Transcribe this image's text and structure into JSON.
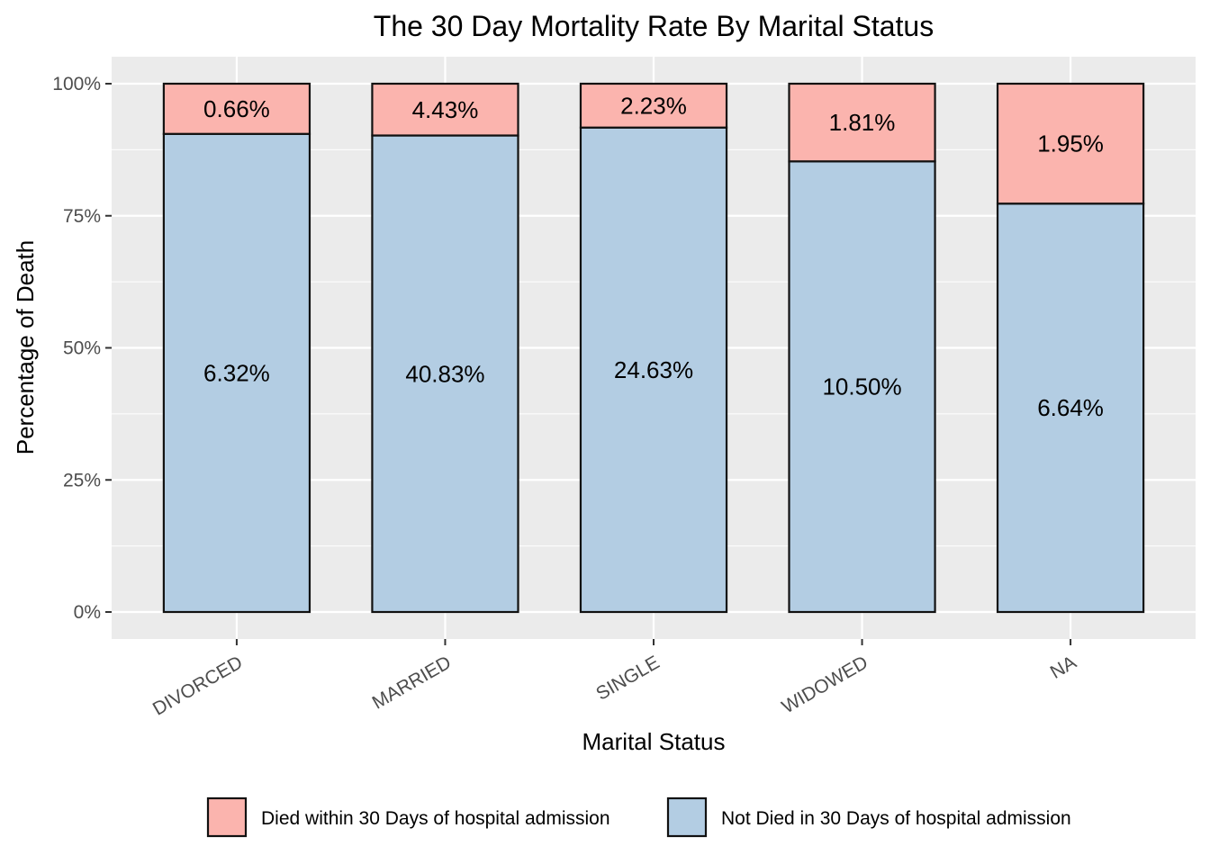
{
  "chart_data": {
    "type": "bar",
    "stacked": "percent",
    "title": "The 30 Day Mortality Rate By Marital Status",
    "xlabel": "Marital Status",
    "ylabel": "Percentage of Death",
    "ylim": [
      0,
      1
    ],
    "y_ticks": [
      "0%",
      "25%",
      "50%",
      "75%",
      "100%"
    ],
    "categories": [
      "DIVORCED",
      "MARRIED",
      "SINGLE",
      "WIDOWED",
      "NA"
    ],
    "series": [
      {
        "name": "Not Died in 30 Days of hospital admission",
        "color": "#B3CDE3",
        "values": [
          0.905,
          0.902,
          0.917,
          0.853,
          0.773
        ],
        "labels": [
          "6.32%",
          "40.83%",
          "24.63%",
          "10.50%",
          "6.64%"
        ]
      },
      {
        "name": "Died within 30 Days of hospital admission",
        "color": "#FBB4AE",
        "values": [
          0.095,
          0.098,
          0.083,
          0.147,
          0.227
        ],
        "labels": [
          "0.66%",
          "4.43%",
          "2.23%",
          "1.81%",
          "1.95%"
        ]
      }
    ],
    "legend_position": "bottom",
    "legend_order": [
      "Died within 30 Days of hospital admission",
      "Not Died in 30 Days of hospital admission"
    ],
    "panel_background": "#EBEBEB",
    "grid": true
  }
}
